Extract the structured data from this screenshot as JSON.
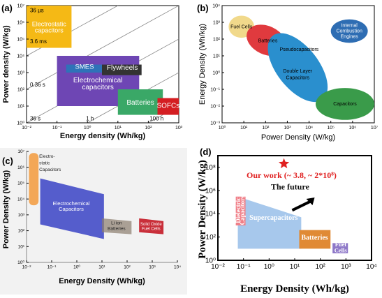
{
  "panels": {
    "a": {
      "label": "(a)"
    },
    "b": {
      "label": "(b)"
    },
    "c": {
      "label": "(c)"
    },
    "d": {
      "label": "(d)"
    }
  },
  "chart_data": [
    {
      "id": "a",
      "type": "area",
      "xlabel": "Energy density (Wh/kg)",
      "ylabel": "Power density (W/kg)",
      "x_log": true,
      "y_log": true,
      "xlim_exp": [
        -2,
        3
      ],
      "ylim_exp": [
        0,
        7
      ],
      "x_ticks": [
        "10⁻²",
        "10⁻¹",
        "10⁰",
        "10¹",
        "10²",
        "10³"
      ],
      "y_ticks": [
        "10⁰",
        "10¹",
        "10²",
        "10³",
        "10⁴",
        "10⁵",
        "10⁶",
        "10⁷"
      ],
      "time_lines": [
        {
          "label": "36 µs",
          "seconds": 3.6e-05
        },
        {
          "label": "3.6 ms",
          "seconds": 0.0036
        },
        {
          "label": "0.36 s",
          "seconds": 0.36
        },
        {
          "label": "36 s",
          "seconds": 36
        },
        {
          "label": "1 h",
          "seconds": 3600
        },
        {
          "label": "100 h",
          "seconds": 360000
        }
      ],
      "regions": [
        {
          "name": "Electrostatic capacitors",
          "color": "#f5b915",
          "text_color": "#ffffff",
          "x": [
            0.01,
            0.3
          ],
          "y": [
            30000,
            10000000
          ]
        },
        {
          "name": "Electrochemical capacitors",
          "color": "#6e46b4",
          "text_color": "#ffffff",
          "x": [
            0.1,
            50
          ],
          "y": [
            10,
            10000
          ]
        },
        {
          "name": "SMES",
          "color": "#2f72b8",
          "text_color": "#ffffff",
          "x": [
            0.2,
            3
          ],
          "y": [
            1000,
            3000
          ]
        },
        {
          "name": "Flywheels",
          "color": "#333333",
          "text_color": "#ffffff",
          "x": [
            3,
            60
          ],
          "y": [
            700,
            3000
          ]
        },
        {
          "name": "Batteries",
          "color": "#3aa867",
          "text_color": "#ffffff",
          "x": [
            10,
            300
          ],
          "y": [
            3,
            100
          ]
        },
        {
          "name": "SOFCs",
          "color": "#d41e22",
          "text_color": "#ffffff",
          "x": [
            200,
            1000
          ],
          "y": [
            3,
            30
          ]
        }
      ]
    },
    {
      "id": "b",
      "type": "scatter",
      "xlabel": "Power Density (W/kg)",
      "ylabel": "Energy Density (Wh/kg)",
      "x_log": true,
      "y_log": true,
      "xlim_exp": [
        0,
        7
      ],
      "ylim_exp": [
        -3,
        4
      ],
      "x_ticks": [
        "10⁰",
        "10¹",
        "10²",
        "10³",
        "10⁴",
        "10⁵",
        "10⁶",
        "10⁷"
      ],
      "y_ticks": [
        "10⁻³",
        "10⁻²",
        "10⁻¹",
        "10⁰",
        "10¹",
        "10²",
        "10³",
        "10⁴"
      ],
      "regions": [
        {
          "name": "Fuel Cells",
          "color": "#f1d98b",
          "x": [
            2,
            30
          ],
          "y": [
            120,
            2500
          ]
        },
        {
          "name": "Batteries",
          "color": "#e03a3e",
          "x": [
            12,
            1000
          ],
          "y": [
            12,
            600
          ]
        },
        {
          "name": "Pseudocapacitors",
          "color": "#2a8fce",
          "x": [
            200,
            40000
          ],
          "y": [
            0.8,
            60
          ]
        },
        {
          "name": "Double Layer Capacitors",
          "color": "#2a8fce",
          "x": [
            200,
            100000
          ],
          "y": [
            0.02,
            5
          ]
        },
        {
          "name": "Capacitors",
          "color": "#3a9b4a",
          "x": [
            20000,
            10000000
          ],
          "y": [
            0.0015,
            0.12
          ]
        },
        {
          "name": "Internal Combustion Engines",
          "color": "#2e6db3",
          "x": [
            100000,
            5000000
          ],
          "y": [
            60,
            1500
          ]
        }
      ]
    },
    {
      "id": "c",
      "type": "area",
      "xlabel": "Energy Density (Wh/kg)",
      "ylabel": "Power Density (W/kg)",
      "x_log": true,
      "y_log": true,
      "xlim_exp": [
        -2,
        4
      ],
      "ylim_exp": [
        0,
        7
      ],
      "x_ticks": [
        "10⁻²",
        "10⁻¹",
        "10⁰",
        "10¹",
        "10²",
        "10³",
        "10⁴"
      ],
      "y_ticks": [
        "10⁰",
        "10¹",
        "10²",
        "10³",
        "10⁴",
        "10⁵",
        "10⁶",
        "10⁷"
      ],
      "regions": [
        {
          "name": "Electro-static Capacitors",
          "color": "#f39a3c",
          "text_color": "#222222"
        },
        {
          "name": "Electrochemical Capacitors",
          "color": "#3a43c6",
          "text_color": "#ffffff"
        },
        {
          "name": "Li ion Batteries",
          "color": "#8b7d6e",
          "text_color": "#222222"
        },
        {
          "name": "Solid Oxide Fuel Cells",
          "color": "#c41a26",
          "text_color": "#ffffff"
        }
      ]
    },
    {
      "id": "d",
      "type": "area",
      "xlabel": "Energy Density (Wh/kg)",
      "ylabel": "Power Density (W/kg)",
      "x_log": true,
      "y_log": true,
      "xlim_exp": [
        -2,
        4
      ],
      "ylim_exp": [
        0,
        9
      ],
      "x_ticks": [
        "10⁻²",
        "10⁻¹",
        "10⁰",
        "10¹",
        "10²",
        "10³",
        "10⁴"
      ],
      "y_ticks": [
        "10⁰",
        "10²",
        "10⁴",
        "10⁶",
        "10⁸"
      ],
      "regions": [
        {
          "name": "Dielectric Capacitors",
          "color": "#f07f88",
          "text_color": "#ffffff",
          "x": [
            0.05,
            0.12
          ],
          "y": [
            1000,
            300000
          ]
        },
        {
          "name": "Supercapacitors",
          "color": "#a7c8ec",
          "text_color": "#ffffff"
        },
        {
          "name": "Batteries",
          "color": "#e08a35",
          "text_color": "#ffffff",
          "x": [
            15,
            250
          ],
          "y": [
            10,
            400
          ]
        },
        {
          "name": "Fuel Cells",
          "color": "#8e78c8",
          "text_color": "#ffffff",
          "x": [
            300,
            1200
          ],
          "y": [
            4,
            30
          ]
        }
      ],
      "our_work": {
        "label": "Our work (~ 3.8, ~ 2*10⁸)",
        "x": 3.8,
        "y": 200000000,
        "color": "#e02020"
      },
      "future": {
        "label": "The future",
        "color": "#111111"
      }
    }
  ]
}
